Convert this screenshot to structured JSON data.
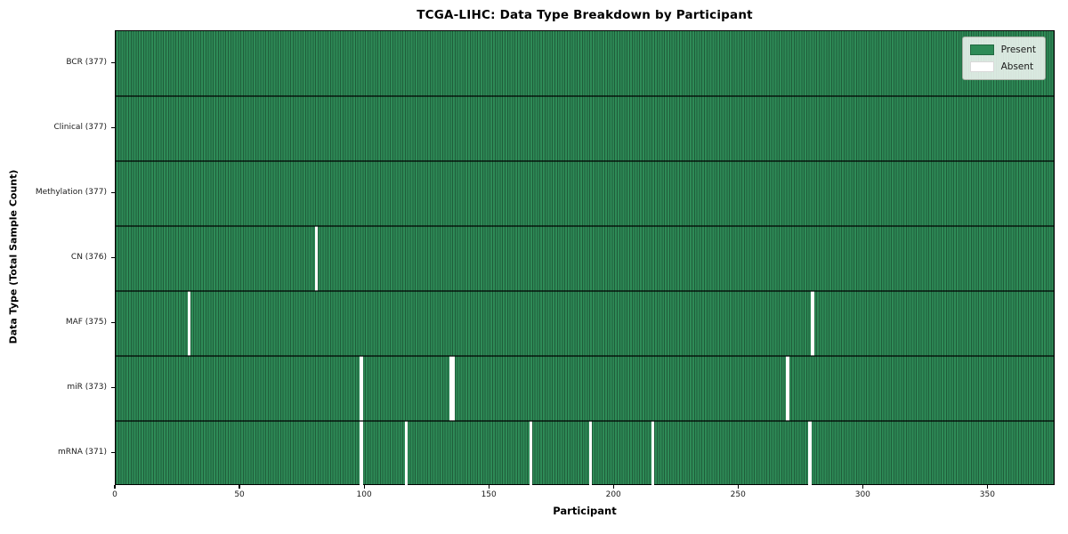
{
  "title": "TCGA-LIHC: Data Type Breakdown by Participant",
  "axes": {
    "xlabel": "Participant",
    "ylabel": "Data Type (Total Sample Count)",
    "x_ticks": [
      0,
      50,
      100,
      150,
      200,
      250,
      300,
      350
    ]
  },
  "legend": {
    "items": [
      {
        "label": "Present",
        "color": "#2e8b57"
      },
      {
        "label": "Absent",
        "color": "#ffffff"
      }
    ]
  },
  "chart_data": {
    "type": "heatmap",
    "title": "TCGA-LIHC: Data Type Breakdown by Participant",
    "xlabel": "Participant",
    "ylabel": "Data Type (Total Sample Count)",
    "n_participants": 377,
    "x_ticks": [
      0,
      50,
      100,
      150,
      200,
      250,
      300,
      350
    ],
    "x_range": [
      0,
      377
    ],
    "legend_position": "upper right",
    "grid": "cell-edges",
    "colors": {
      "present": "#2e8b57",
      "absent": "#ffffff",
      "cell_edge": "rgba(0,0,0,0.33)"
    },
    "rows": [
      {
        "label": "BCR (377)",
        "data_type": "BCR",
        "present_count": 377,
        "absent_participants": []
      },
      {
        "label": "Clinical (377)",
        "data_type": "Clinical",
        "present_count": 377,
        "absent_participants": []
      },
      {
        "label": "Methylation (377)",
        "data_type": "Methylation",
        "present_count": 377,
        "absent_participants": []
      },
      {
        "label": "CN (376)",
        "data_type": "CN",
        "present_count": 376,
        "absent_participants": [
          80
        ]
      },
      {
        "label": "MAF (375)",
        "data_type": "MAF",
        "present_count": 375,
        "absent_participants": [
          29,
          279
        ]
      },
      {
        "label": "miR (373)",
        "data_type": "miR",
        "present_count": 373,
        "absent_participants": [
          98,
          134,
          135,
          269
        ]
      },
      {
        "label": "mRNA (371)",
        "data_type": "mRNA",
        "present_count": 371,
        "absent_participants": [
          98,
          116,
          166,
          190,
          215,
          278
        ]
      }
    ]
  }
}
